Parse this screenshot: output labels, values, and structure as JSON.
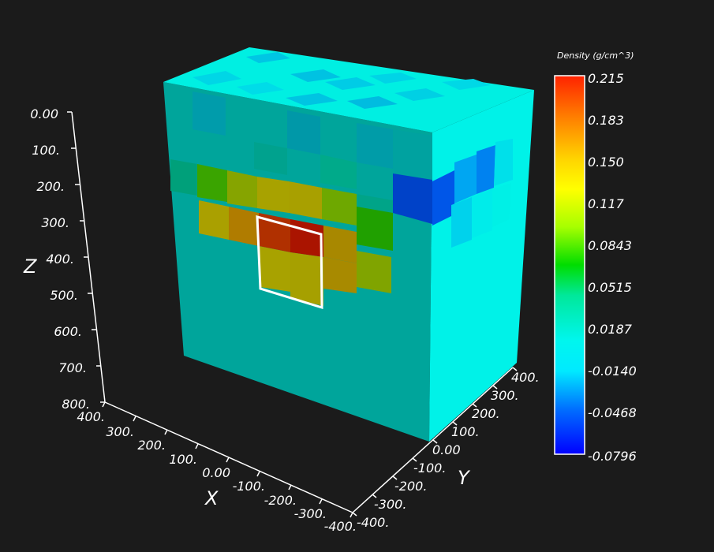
{
  "app": {
    "background": "#1b1b1b"
  },
  "scene": {
    "type": "3d-voxel-model",
    "model_quantity": "Density",
    "highlight_color": "#ffffff",
    "block_colors": {
      "background_cell": "#00a59b",
      "background_cell_side": "#00f2e8",
      "top_cell": "#00efe2",
      "anomaly_high": "#c32000",
      "anomaly_mid": "#a6a000",
      "anomaly_low": "#0053d0"
    }
  },
  "axes": {
    "z": {
      "title": "Z",
      "ticks": [
        "0.00",
        "100.",
        "200.",
        "300.",
        "400.",
        "500.",
        "600.",
        "700.",
        "800."
      ]
    },
    "x": {
      "title": "X",
      "ticks": [
        "400.",
        "300.",
        "200.",
        "100.",
        "0.00",
        "-100.",
        "-200.",
        "-300.",
        "-400."
      ]
    },
    "y": {
      "title": "Y",
      "ticks": [
        "-400.",
        "-300.",
        "-200.",
        "-100.",
        "0.00",
        "100.",
        "200.",
        "300.",
        "400."
      ]
    }
  },
  "colorbar": {
    "title": "Density (g/cm^3)",
    "labels": [
      "0.215",
      "0.183",
      "0.150",
      "0.117",
      "0.0843",
      "0.0515",
      "0.0187",
      "-0.0140",
      "-0.0468",
      "-0.0796"
    ],
    "stops": [
      {
        "offset": 0.0,
        "color": "#ff2200"
      },
      {
        "offset": 0.1,
        "color": "#ff7700"
      },
      {
        "offset": 0.22,
        "color": "#ffd400"
      },
      {
        "offset": 0.3,
        "color": "#ffff00"
      },
      {
        "offset": 0.4,
        "color": "#a6ff00"
      },
      {
        "offset": 0.5,
        "color": "#00dd00"
      },
      {
        "offset": 0.58,
        "color": "#00e89a"
      },
      {
        "offset": 0.7,
        "color": "#00f6ee"
      },
      {
        "offset": 0.78,
        "color": "#00eaff"
      },
      {
        "offset": 0.88,
        "color": "#0070ff"
      },
      {
        "offset": 1.0,
        "color": "#0000ff"
      }
    ]
  }
}
